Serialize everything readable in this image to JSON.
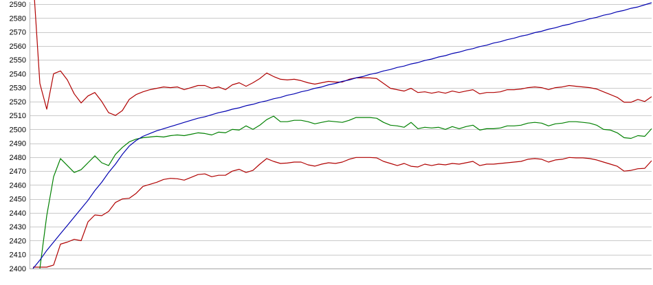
{
  "chart_data": {
    "type": "line",
    "title": "",
    "xlabel": "",
    "ylabel": "",
    "grid": "horizontal",
    "legend": "none",
    "colors": {
      "grid": "#c9c9c9",
      "baseline": "#a6a6a6",
      "axis": "#b5b5b5",
      "label": "#000000",
      "background": "#ffffff"
    },
    "y_axis": {
      "min": 2400,
      "max": 2590,
      "tick_interval": 10,
      "tick_labels": [
        "2590",
        "2580",
        "2570",
        "2560",
        "2550",
        "2540",
        "2530",
        "2520",
        "2510",
        "2500",
        "2490",
        "2480",
        "2470",
        "2460",
        "2450",
        "2440",
        "2430",
        "2420",
        "2410",
        "2400"
      ]
    },
    "x_axis": {
      "tick_labels": [],
      "samples": 91
    },
    "series": [
      {
        "name": "red-upper-band",
        "color": "#b00000",
        "values": [
          2610,
          2533,
          2514.5,
          2540,
          2542,
          2535.5,
          2525.5,
          2519,
          2524,
          2526.5,
          2520,
          2512,
          2510,
          2513.5,
          2521.5,
          2525,
          2527,
          2528.5,
          2529.5,
          2530.5,
          2530,
          2530.5,
          2528.5,
          2530,
          2531.5,
          2531.5,
          2529.5,
          2530.5,
          2528.5,
          2532,
          2533.5,
          2531,
          2533.5,
          2536.5,
          2540.5,
          2538,
          2536,
          2535.5,
          2536,
          2535,
          2533.5,
          2532.5,
          2533.5,
          2534.5,
          2534,
          2534,
          2536,
          2537,
          2537,
          2537,
          2536.5,
          2533,
          2529.5,
          2528.5,
          2527.5,
          2529.5,
          2526.5,
          2527,
          2526,
          2527,
          2526,
          2527.5,
          2526.5,
          2527.5,
          2528.5,
          2525.5,
          2526.5,
          2526.5,
          2527,
          2528.5,
          2528.5,
          2529,
          2530,
          2530.5,
          2530,
          2528.5,
          2530,
          2530.5,
          2531.5,
          2531,
          2530.5,
          2530,
          2529,
          2527,
          2525,
          2523,
          2519.5,
          2519.5,
          2521.5,
          2520,
          2523.5
        ]
      },
      {
        "name": "red-lower-band",
        "color": "#b00000",
        "values": [
          2401,
          2401,
          2401,
          2402.5,
          2417.5,
          2419,
          2421,
          2420,
          2433.5,
          2438.5,
          2438,
          2441,
          2447.5,
          2450,
          2450.5,
          2454,
          2459,
          2460.5,
          2462,
          2464,
          2464.8,
          2464.5,
          2463.5,
          2465.5,
          2467.5,
          2468,
          2466,
          2467,
          2467,
          2470,
          2471.3,
          2469,
          2470.5,
          2475,
          2479,
          2477,
          2475.5,
          2475.8,
          2476.5,
          2476.5,
          2474.5,
          2473.6,
          2475,
          2476,
          2475.5,
          2476.5,
          2478.5,
          2479.8,
          2479.8,
          2479.8,
          2479.5,
          2477,
          2475.5,
          2474,
          2475.5,
          2473.5,
          2473,
          2475,
          2474,
          2475,
          2474.5,
          2475.5,
          2475,
          2476,
          2477,
          2474,
          2475,
          2475,
          2475.5,
          2476,
          2476.5,
          2477,
          2478.5,
          2479,
          2478.5,
          2476.5,
          2478,
          2478.5,
          2479.8,
          2479.5,
          2479.5,
          2479,
          2478,
          2476.5,
          2475,
          2473.5,
          2470,
          2470.5,
          2471.7,
          2472,
          2477.5
        ]
      },
      {
        "name": "green-average",
        "color": "#008000",
        "values": [
          null,
          2400,
          2438,
          2466,
          2479,
          2474,
          2469,
          2471,
          2476,
          2481,
          2476,
          2474,
          2482,
          2487,
          2491,
          2493,
          2494,
          2494.5,
          2495,
          2494.5,
          2495.5,
          2496,
          2495.5,
          2496.5,
          2497.5,
          2497,
          2496,
          2498,
          2497.5,
          2500,
          2499.5,
          2502.5,
          2500,
          2503,
          2507,
          2509.5,
          2505.5,
          2505.5,
          2506.5,
          2506.5,
          2505.5,
          2504,
          2505,
          2506,
          2505.5,
          2505,
          2506.5,
          2508.5,
          2508.5,
          2508.5,
          2508,
          2505,
          2503,
          2502.5,
          2501.5,
          2505,
          2500.5,
          2501.5,
          2501,
          2501.5,
          2500,
          2502,
          2500.5,
          2502,
          2503,
          2499.5,
          2500.5,
          2500.5,
          2501,
          2502.5,
          2502.5,
          2503,
          2504.5,
          2505,
          2504.5,
          2502.5,
          2504,
          2504.5,
          2505.5,
          2505.5,
          2505,
          2504.5,
          2503,
          2500,
          2499.5,
          2497.5,
          2494,
          2493.5,
          2495.5,
          2495,
          2500.5
        ]
      },
      {
        "name": "blue-trend",
        "color": "#0000b0",
        "values": [
          2400,
          2406,
          2413,
          2419,
          2425,
          2431,
          2437,
          2443,
          2449,
          2456,
          2462,
          2469,
          2475,
          2482,
          2488,
          2492,
          2495,
          2497,
          2499,
          2500.5,
          2502,
          2503.5,
          2505,
          2506.5,
          2508,
          2509,
          2510.5,
          2512,
          2513,
          2514.5,
          2515.5,
          2517,
          2518,
          2519.5,
          2520.5,
          2522,
          2523,
          2524.5,
          2525.5,
          2527,
          2528,
          2529.5,
          2530.5,
          2532,
          2533,
          2534.5,
          2535.5,
          2537,
          2538,
          2539.5,
          2540.5,
          2542,
          2543,
          2544.5,
          2545.5,
          2547,
          2548,
          2549.5,
          2550.5,
          2552,
          2553,
          2554.5,
          2555.5,
          2557,
          2558,
          2559.5,
          2560.5,
          2562,
          2563,
          2564.5,
          2565.5,
          2567,
          2568,
          2569.5,
          2570.5,
          2572,
          2573,
          2574.5,
          2575.5,
          2577,
          2578,
          2579.5,
          2580.5,
          2582,
          2583,
          2584.5,
          2585.5,
          2587,
          2588,
          2589.5,
          2591
        ]
      }
    ]
  }
}
